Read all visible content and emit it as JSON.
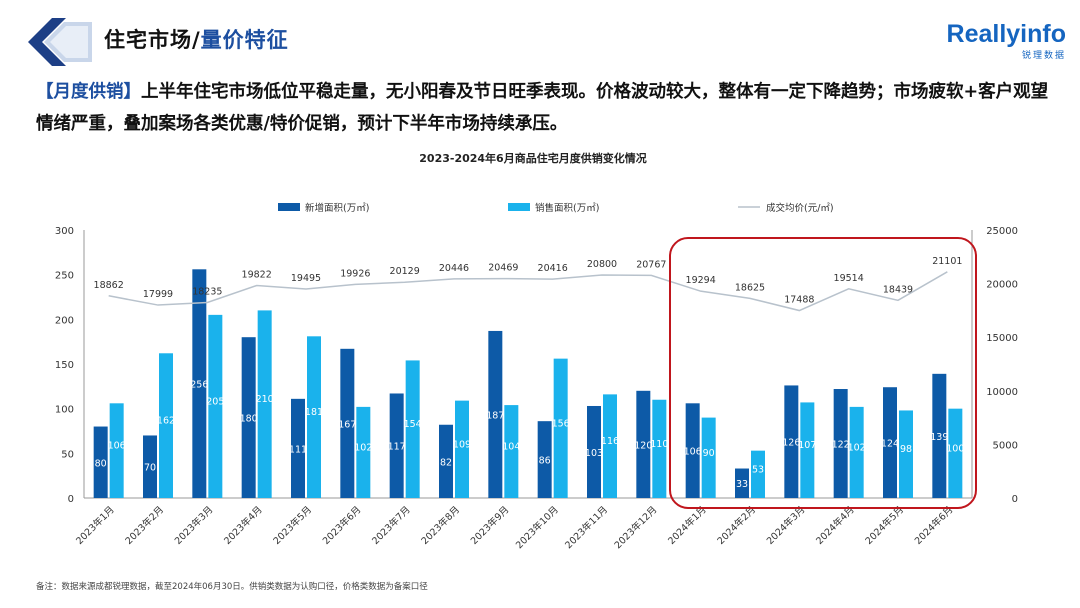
{
  "header": {
    "title_main": "住宅市场/",
    "title_accent": "量价特征",
    "brand_name": "Reallyinfo",
    "brand_sub": "锐理数据"
  },
  "summary": {
    "tag": "【月度供销】",
    "text": "上半年住宅市场低位平稳走量，无小阳春及节日旺季表现。价格波动较大，整体有一定下降趋势；市场疲软+客户观望情绪严重，叠加案场各类优惠/特价促销，预计下半年市场持续承压。"
  },
  "footnote": "备注：数据来源成都锐理数据，截至2024年06月30日。供销类数据为认购口径，价格类数据为备案口径",
  "colors": {
    "supply": "#0d5aa7",
    "sales": "#1ab2ec",
    "price": "#b8c2cc",
    "highlight": "#c0161d",
    "accent": "#1d4fa0"
  },
  "chart_data": {
    "type": "bar",
    "title": "2023-2024年6月商品住宅月度供销变化情况",
    "categories": [
      "2023年1月",
      "2023年2月",
      "2023年3月",
      "2023年4月",
      "2023年5月",
      "2023年6月",
      "2023年7月",
      "2023年8月",
      "2023年9月",
      "2023年10月",
      "2023年11月",
      "2023年12月",
      "2024年1月",
      "2024年2月",
      "2024年3月",
      "2024年4月",
      "2024年5月",
      "2024年6月"
    ],
    "series": [
      {
        "name": "新增面积(万㎡)",
        "kind": "bar",
        "axis": "left",
        "values": [
          80,
          70,
          256,
          180,
          111,
          167,
          117,
          82,
          187,
          86,
          103,
          120,
          106,
          33,
          126,
          122,
          124,
          139
        ]
      },
      {
        "name": "销售面积(万㎡)",
        "kind": "bar",
        "axis": "left",
        "values": [
          106,
          162,
          205,
          210,
          181,
          102,
          154,
          109,
          104,
          156,
          116,
          110,
          90,
          53,
          107,
          102,
          98,
          100
        ]
      },
      {
        "name": "成交均价(元/㎡)",
        "kind": "line",
        "axis": "right",
        "values": [
          18862,
          17999,
          18235,
          19822,
          19495,
          19926,
          20129,
          20446,
          20469,
          20416,
          20800,
          20767,
          19294,
          18625,
          17488,
          19514,
          18439,
          21101
        ]
      }
    ],
    "left_axis": {
      "ylim": [
        0,
        300
      ],
      "ticks": [
        0,
        50,
        100,
        150,
        200,
        250,
        300
      ]
    },
    "right_axis": {
      "ylim": [
        0,
        25000
      ],
      "ticks": [
        0,
        5000,
        10000,
        15000,
        20000,
        25000
      ]
    },
    "legend": "top-center",
    "highlight_range": [
      "2024年1月",
      "2024年6月"
    ],
    "grid": false
  }
}
